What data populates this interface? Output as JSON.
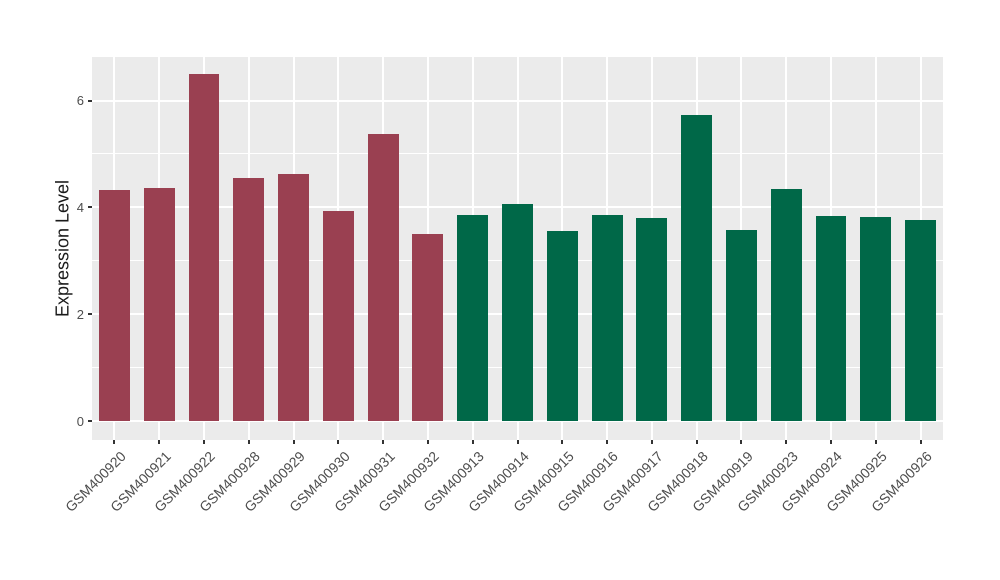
{
  "figure": {
    "background": "#FFFFFF",
    "panel_background": "#EBEBEB",
    "grid_color": "#FFFFFF",
    "tick_mark_color": "#333333",
    "axis_text_color": "#4D4D4D",
    "axis_title_color": "#1A1A1A",
    "group1_color": "#9A4051",
    "group2_color": "#006848"
  },
  "chart_data": {
    "type": "bar",
    "title": "",
    "xlabel": "",
    "ylabel": "Expression Level",
    "categories": [
      "GSM400920",
      "GSM400921",
      "GSM400922",
      "GSM400928",
      "GSM400929",
      "GSM400930",
      "GSM400931",
      "GSM400932",
      "GSM400913",
      "GSM400914",
      "GSM400915",
      "GSM400916",
      "GSM400917",
      "GSM400918",
      "GSM400919",
      "GSM400923",
      "GSM400924",
      "GSM400925",
      "GSM400926"
    ],
    "values": [
      4.32,
      4.37,
      6.49,
      4.56,
      4.63,
      3.94,
      5.37,
      3.51,
      3.85,
      4.07,
      3.55,
      3.85,
      3.81,
      5.73,
      3.58,
      4.34,
      3.83,
      3.82,
      3.77
    ],
    "colors": [
      "#9A4051",
      "#9A4051",
      "#9A4051",
      "#9A4051",
      "#9A4051",
      "#9A4051",
      "#9A4051",
      "#9A4051",
      "#006848",
      "#006848",
      "#006848",
      "#006848",
      "#006848",
      "#006848",
      "#006848",
      "#006848",
      "#006848",
      "#006848",
      "#006848"
    ],
    "yticks": [
      0,
      2,
      4,
      6
    ],
    "yticks_minor": [
      1,
      3,
      5
    ],
    "ylim": [
      0,
      6.8
    ],
    "grid": true,
    "legend_position": "none"
  }
}
